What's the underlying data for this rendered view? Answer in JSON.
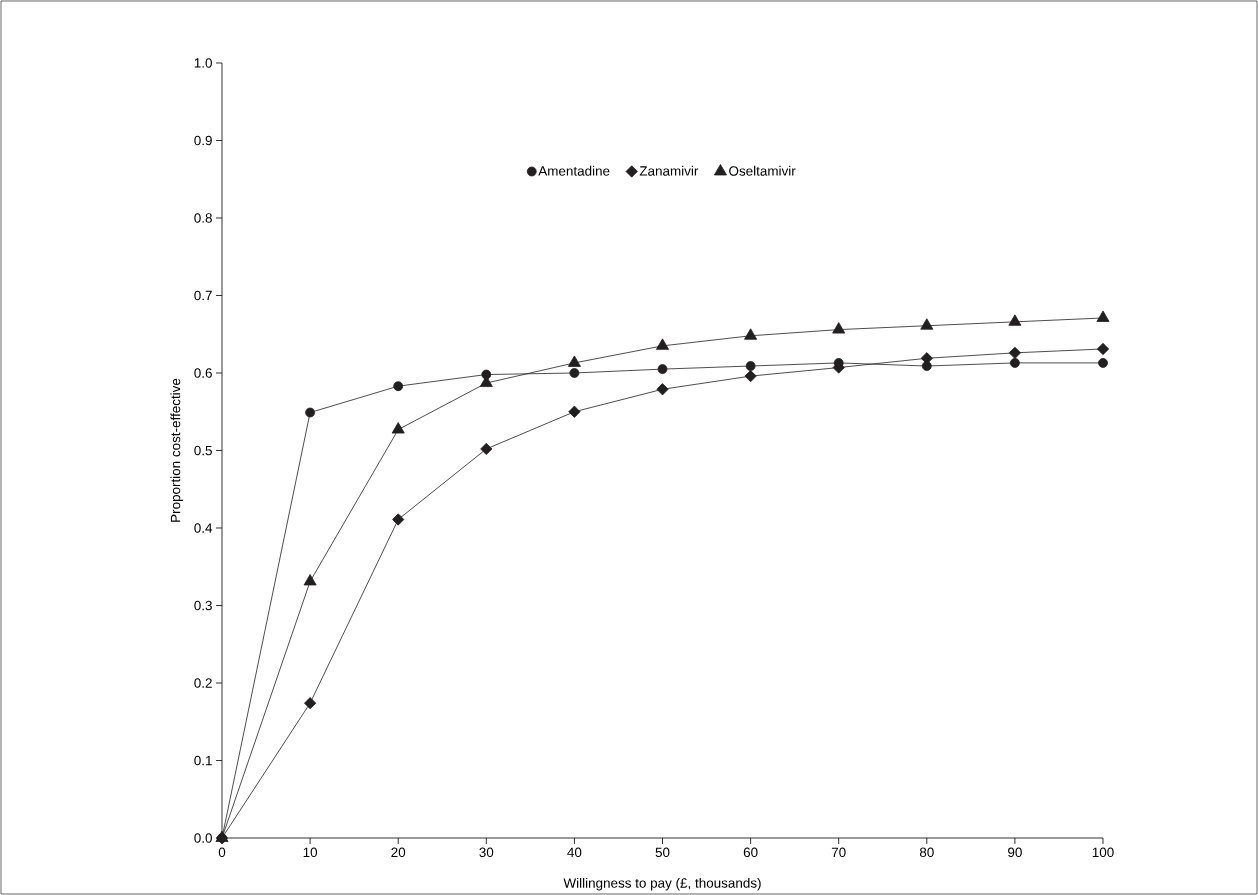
{
  "chart_data": {
    "type": "line",
    "xlabel": "Willingness to pay (£, thousands)",
    "ylabel": "Proportion cost-effective",
    "x": [
      0,
      10,
      20,
      30,
      40,
      50,
      60,
      70,
      80,
      90,
      100
    ],
    "series": [
      {
        "name": "Amentadine",
        "color": "#231f20",
        "marker": "circle",
        "values": [
          0,
          0.549,
          0.583,
          0.598,
          0.6,
          0.605,
          0.609,
          0.613,
          0.609,
          0.613,
          0.613
        ]
      },
      {
        "name": "Zanamivir",
        "color": "#231f20",
        "marker": "diamond",
        "values": [
          0,
          0.174,
          0.411,
          0.502,
          0.55,
          0.579,
          0.596,
          0.607,
          0.619,
          0.626,
          0.631
        ]
      },
      {
        "name": "Oseltamivir",
        "color": "#231f20",
        "marker": "triangle",
        "values": [
          0,
          0.331,
          0.527,
          0.587,
          0.613,
          0.635,
          0.648,
          0.656,
          0.661,
          0.666,
          0.671
        ]
      }
    ],
    "xlim": [
      0,
      100
    ],
    "ylim": [
      0,
      1
    ],
    "xticks": [
      0,
      10,
      20,
      30,
      40,
      50,
      60,
      70,
      80,
      90,
      100
    ],
    "yticks": [
      {
        "value": 0,
        "label": "0.0"
      },
      0.1,
      0.2,
      0.3,
      0.4,
      0.5,
      0.6,
      0.7,
      0.8,
      0.9,
      {
        "value": 1,
        "label": "1.0"
      }
    ],
    "legend": "top",
    "grid": false,
    "line_style": "solid"
  }
}
